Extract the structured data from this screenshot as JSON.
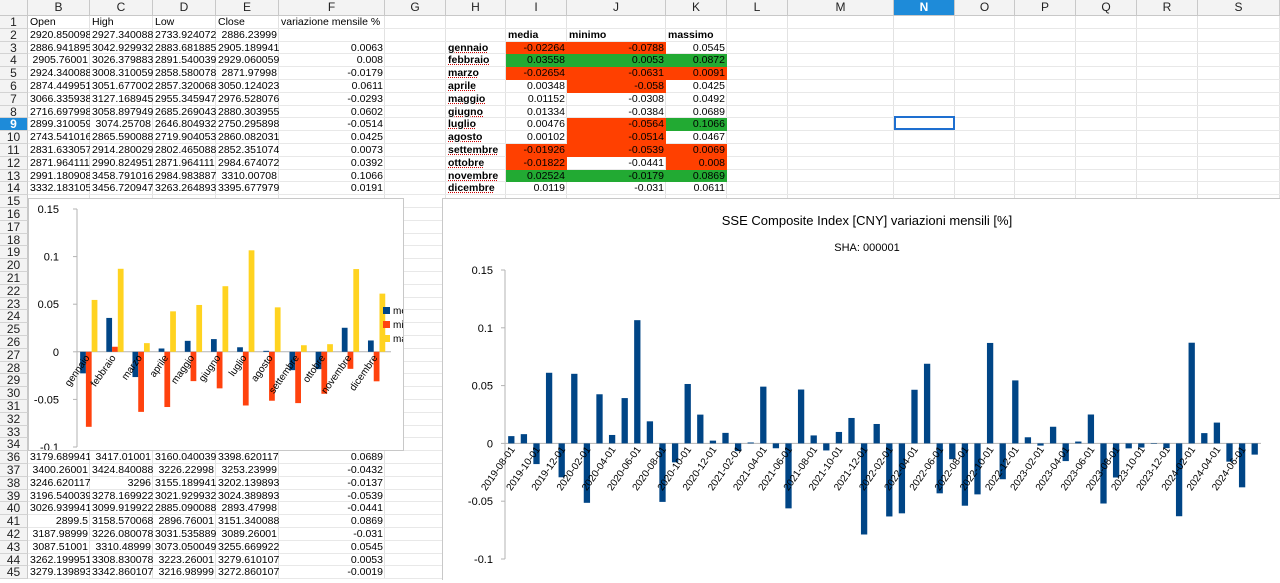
{
  "sheet": {
    "columns": [
      "B",
      "C",
      "D",
      "E",
      "F",
      "G",
      "H",
      "I",
      "J",
      "K",
      "L",
      "M",
      "N",
      "O",
      "P",
      "Q",
      "R",
      "S"
    ],
    "selected_column": "N",
    "selected_row": "9",
    "headers_row1": {
      "B": "Open",
      "C": "High",
      "D": "Low",
      "E": "Close",
      "F": "variazione mensile %"
    },
    "top_rows": [
      [
        "2920.850098",
        "2927.340088",
        "2733.924072",
        "2886.23999",
        ""
      ],
      [
        "2886.941895",
        "3042.929932",
        "2883.681885",
        "2905.189941",
        "0.0063"
      ],
      [
        "2905.76001",
        "3026.379883",
        "2891.540039",
        "2929.060059",
        "0.008"
      ],
      [
        "2924.340088",
        "3008.310059",
        "2858.580078",
        "2871.97998",
        "-0.0179"
      ],
      [
        "2874.449951",
        "3051.677002",
        "2857.320068",
        "3050.124023",
        "0.0611"
      ],
      [
        "3066.335938",
        "3127.168945",
        "2955.345947",
        "2976.528076",
        "-0.0293"
      ],
      [
        "2716.697998",
        "3058.897949",
        "2685.269043",
        "2880.303955",
        "0.0602"
      ],
      [
        "2899.310059",
        "3074.25708",
        "2646.804932",
        "2750.295898",
        "-0.0514"
      ],
      [
        "2743.541016",
        "2865.590088",
        "2719.904053",
        "2860.082031",
        "0.0425"
      ],
      [
        "2831.633057",
        "2914.280029",
        "2802.465088",
        "2852.351074",
        "0.0073"
      ],
      [
        "2871.964111",
        "2990.824951",
        "2871.964111",
        "2984.674072",
        "0.0392"
      ],
      [
        "2991.180908",
        "3458.791016",
        "2984.983887",
        "3310.00708",
        "0.1066"
      ],
      [
        "3332.183105",
        "3456.720947",
        "3263.264893",
        "3395.677979",
        "0.0191"
      ]
    ],
    "bottom_rows": [
      [
        "3179.689941",
        "3417.01001",
        "3160.040039",
        "3398.620117",
        "0.0689"
      ],
      [
        "3400.26001",
        "3424.840088",
        "3226.22998",
        "3253.23999",
        "-0.0432"
      ],
      [
        "3246.620117",
        "3296",
        "3155.189941",
        "3202.139893",
        "-0.0137"
      ],
      [
        "3196.540039",
        "3278.169922",
        "3021.929932",
        "3024.389893",
        "-0.0539"
      ],
      [
        "3026.939941",
        "3099.919922",
        "2885.090088",
        "2893.47998",
        "-0.0441"
      ],
      [
        "2899.5",
        "3158.570068",
        "2896.76001",
        "3151.340088",
        "0.0869"
      ],
      [
        "3187.98999",
        "3226.080078",
        "3031.535889",
        "3089.26001",
        "-0.031"
      ],
      [
        "3087.51001",
        "3310.48999",
        "3073.050049",
        "3255.669922",
        "0.0545"
      ],
      [
        "3262.199951",
        "3308.830078",
        "3223.26001",
        "3279.610107",
        "0.0053"
      ],
      [
        "3279.139893",
        "3342.860107",
        "3216.98999",
        "3272.860107",
        "-0.0019"
      ]
    ],
    "bottom_row_numbers": [
      "36",
      "37",
      "38",
      "39",
      "40",
      "41",
      "42",
      "43",
      "44",
      "45"
    ],
    "stats_headers": {
      "media": "media",
      "minimo": "minimo",
      "massimo": "massimo"
    },
    "stats": [
      {
        "month": "gennaio",
        "media": "-0.02264",
        "minimo": "-0.0788",
        "massimo": "0.0545",
        "mc": "red",
        "mic": "red",
        "mac": ""
      },
      {
        "month": "febbraio",
        "media": "0.03558",
        "minimo": "0.0053",
        "massimo": "0.0872",
        "mc": "green",
        "mic": "green",
        "mac": "green"
      },
      {
        "month": "marzo",
        "media": "-0.02654",
        "minimo": "-0.0631",
        "massimo": "0.0091",
        "mc": "red",
        "mic": "red",
        "mac": "red"
      },
      {
        "month": "aprile",
        "media": "0.00348",
        "minimo": "-0.058",
        "massimo": "0.0425",
        "mc": "",
        "mic": "red",
        "mac": ""
      },
      {
        "month": "maggio",
        "media": "0.01152",
        "minimo": "-0.0308",
        "massimo": "0.0492",
        "mc": "",
        "mic": "",
        "mac": ""
      },
      {
        "month": "giugno",
        "media": "0.01334",
        "minimo": "-0.0384",
        "massimo": "0.0689",
        "mc": "",
        "mic": "",
        "mac": ""
      },
      {
        "month": "luglio",
        "media": "0.00476",
        "minimo": "-0.0564",
        "massimo": "0.1066",
        "mc": "",
        "mic": "red",
        "mac": "green"
      },
      {
        "month": "agosto",
        "media": "0.00102",
        "minimo": "-0.0514",
        "massimo": "0.0467",
        "mc": "",
        "mic": "red",
        "mac": ""
      },
      {
        "month": "settembre",
        "media": "-0.01926",
        "minimo": "-0.0539",
        "massimo": "0.0069",
        "mc": "red",
        "mic": "red",
        "mac": "red"
      },
      {
        "month": "ottobre",
        "media": "-0.01822",
        "minimo": "-0.0441",
        "massimo": "0.008",
        "mc": "red",
        "mic": "",
        "mac": "red"
      },
      {
        "month": "novembre",
        "media": "0.02524",
        "minimo": "-0.0179",
        "massimo": "0.0869",
        "mc": "green",
        "mic": "green",
        "mac": "green"
      },
      {
        "month": "dicembre",
        "media": "0.0119",
        "minimo": "-0.031",
        "massimo": "0.0611",
        "mc": "",
        "mic": "",
        "mac": ""
      }
    ]
  },
  "chart_data": [
    {
      "type": "bar",
      "categories": [
        "gennaio",
        "febbraio",
        "marzo",
        "aprile",
        "maggio",
        "giugno",
        "luglio",
        "agosto",
        "settembre",
        "ottobre",
        "novembre",
        "dicembre"
      ],
      "series": [
        {
          "name": "media",
          "color": "#004586",
          "values": [
            -0.02264,
            0.03558,
            -0.02654,
            0.00348,
            0.01152,
            0.01334,
            0.00476,
            0.00102,
            -0.01926,
            -0.01822,
            0.02524,
            0.0119
          ]
        },
        {
          "name": "minimo",
          "color": "#ff420e",
          "values": [
            -0.0788,
            0.0053,
            -0.0631,
            -0.058,
            -0.0308,
            -0.0384,
            -0.0564,
            -0.0514,
            -0.0539,
            -0.0441,
            -0.0179,
            -0.031
          ]
        },
        {
          "name": "massimo",
          "color": "#ffd320",
          "values": [
            0.0545,
            0.0872,
            0.0091,
            0.0425,
            0.0492,
            0.0689,
            0.1066,
            0.0467,
            0.0069,
            0.008,
            0.0869,
            0.0611
          ]
        }
      ],
      "ylim": [
        -0.1,
        0.15
      ],
      "yticks": [
        "0.15",
        "0.1",
        "0.05",
        "0",
        "-0.05",
        "-0.1"
      ],
      "legend": "right"
    },
    {
      "type": "bar",
      "title": "SSE Composite Index [CNY] variazioni mensili [%]",
      "subtitle": "SHA: 000001",
      "color": "#004586",
      "ylim": [
        -0.1,
        0.15
      ],
      "yticks": [
        "0.15",
        "0.1",
        "0.05",
        "0",
        "-0.05",
        "-0.1"
      ],
      "x_labels": [
        "2019-08-01",
        "2019-10-01",
        "2019-12-01",
        "2020-02-01",
        "2020-04-01",
        "2020-06-01",
        "2020-08-01",
        "2020-10-01",
        "2020-12-01",
        "2021-02-01",
        "2021-04-01",
        "2021-06-01",
        "2021-08-01",
        "2021-10-01",
        "2021-12-01",
        "2022-02-01",
        "2022-04-01",
        "2022-06-01",
        "2022-08-01",
        "2022-10-01",
        "2022-12-01",
        "2023-02-01",
        "2023-04-01",
        "2023-06-01",
        "2023-08-01",
        "2023-10-01",
        "2023-12-01",
        "2024-02-01",
        "2024-04-01",
        "2024-06-01"
      ],
      "values": [
        0.0063,
        0.008,
        -0.0179,
        0.0611,
        -0.0293,
        0.0602,
        -0.0514,
        0.0425,
        0.0073,
        0.0392,
        0.1066,
        0.0191,
        -0.0506,
        -0.0164,
        0.0514,
        0.0249,
        0.0024,
        0.0091,
        -0.0067,
        0.0008,
        0.0491,
        -0.0042,
        -0.0562,
        0.0466,
        0.0069,
        -0.0061,
        0.0099,
        0.022,
        -0.0788,
        0.0168,
        -0.0632,
        -0.0605,
        0.0464,
        0.0689,
        -0.0432,
        -0.0137,
        -0.0539,
        -0.0441,
        0.0869,
        -0.031,
        0.0545,
        0.0053,
        -0.0019,
        0.0144,
        -0.0153,
        0.0016,
        0.025,
        -0.052,
        -0.0295,
        -0.0043,
        -0.0036,
        0.0,
        -0.0041,
        -0.063,
        0.0871,
        0.0089,
        0.018,
        -0.0158,
        -0.038,
        -0.0097
      ]
    }
  ]
}
